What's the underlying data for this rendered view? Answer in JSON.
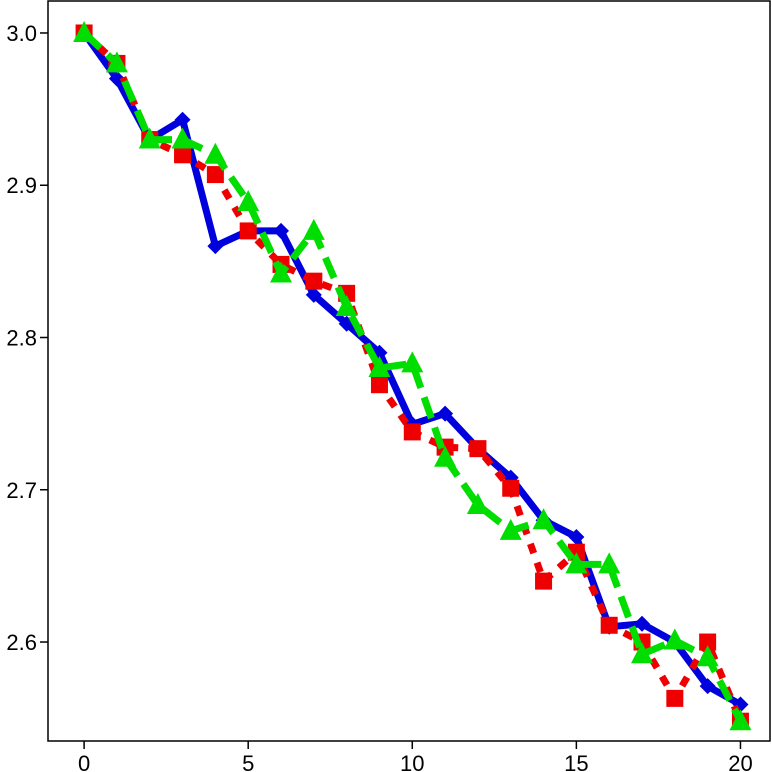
{
  "chart_data": {
    "type": "line",
    "title": "",
    "xlabel": "",
    "ylabel": "",
    "xlim": [
      -1.1,
      20.9
    ],
    "ylim": [
      2.535,
      3.021
    ],
    "x_ticks": [
      0,
      5,
      10,
      15,
      20
    ],
    "x_tick_labels": [
      "0",
      "5",
      "10",
      "15",
      "20"
    ],
    "y_ticks": [
      2.6,
      2.7,
      2.8,
      2.9,
      3.0
    ],
    "y_tick_labels": [
      "2.6",
      "2.7",
      "2.8",
      "2.9",
      "3.0"
    ],
    "grid": false,
    "legend": "none",
    "x": [
      0,
      1,
      2,
      3,
      4,
      5,
      6,
      7,
      8,
      9,
      10,
      11,
      12,
      13,
      14,
      15,
      16,
      17,
      18,
      19,
      20
    ],
    "series": [
      {
        "color": "#0000dd",
        "line_style": "solid",
        "marker": "diamond",
        "values": [
          3.0,
          2.97,
          2.93,
          2.943,
          2.86,
          2.87,
          2.87,
          2.828,
          2.809,
          2.79,
          2.743,
          2.75,
          2.727,
          2.708,
          2.68,
          2.669,
          2.61,
          2.612,
          2.6,
          2.571,
          2.559
        ]
      },
      {
        "color": "#ee0000",
        "line_style": "dotted",
        "marker": "square",
        "values": [
          3.0,
          2.98,
          2.93,
          2.92,
          2.907,
          2.87,
          2.848,
          2.837,
          2.829,
          2.769,
          2.738,
          2.728,
          2.727,
          2.701,
          2.64,
          2.659,
          2.611,
          2.6,
          2.563,
          2.6,
          2.548
        ]
      },
      {
        "color": "#00dd00",
        "line_style": "dashed",
        "marker": "triangle",
        "values": [
          3.0,
          2.98,
          2.93,
          2.93,
          2.92,
          2.889,
          2.842,
          2.87,
          2.82,
          2.78,
          2.783,
          2.721,
          2.69,
          2.673,
          2.68,
          2.651,
          2.651,
          2.592,
          2.601,
          2.59,
          2.548
        ]
      }
    ]
  }
}
